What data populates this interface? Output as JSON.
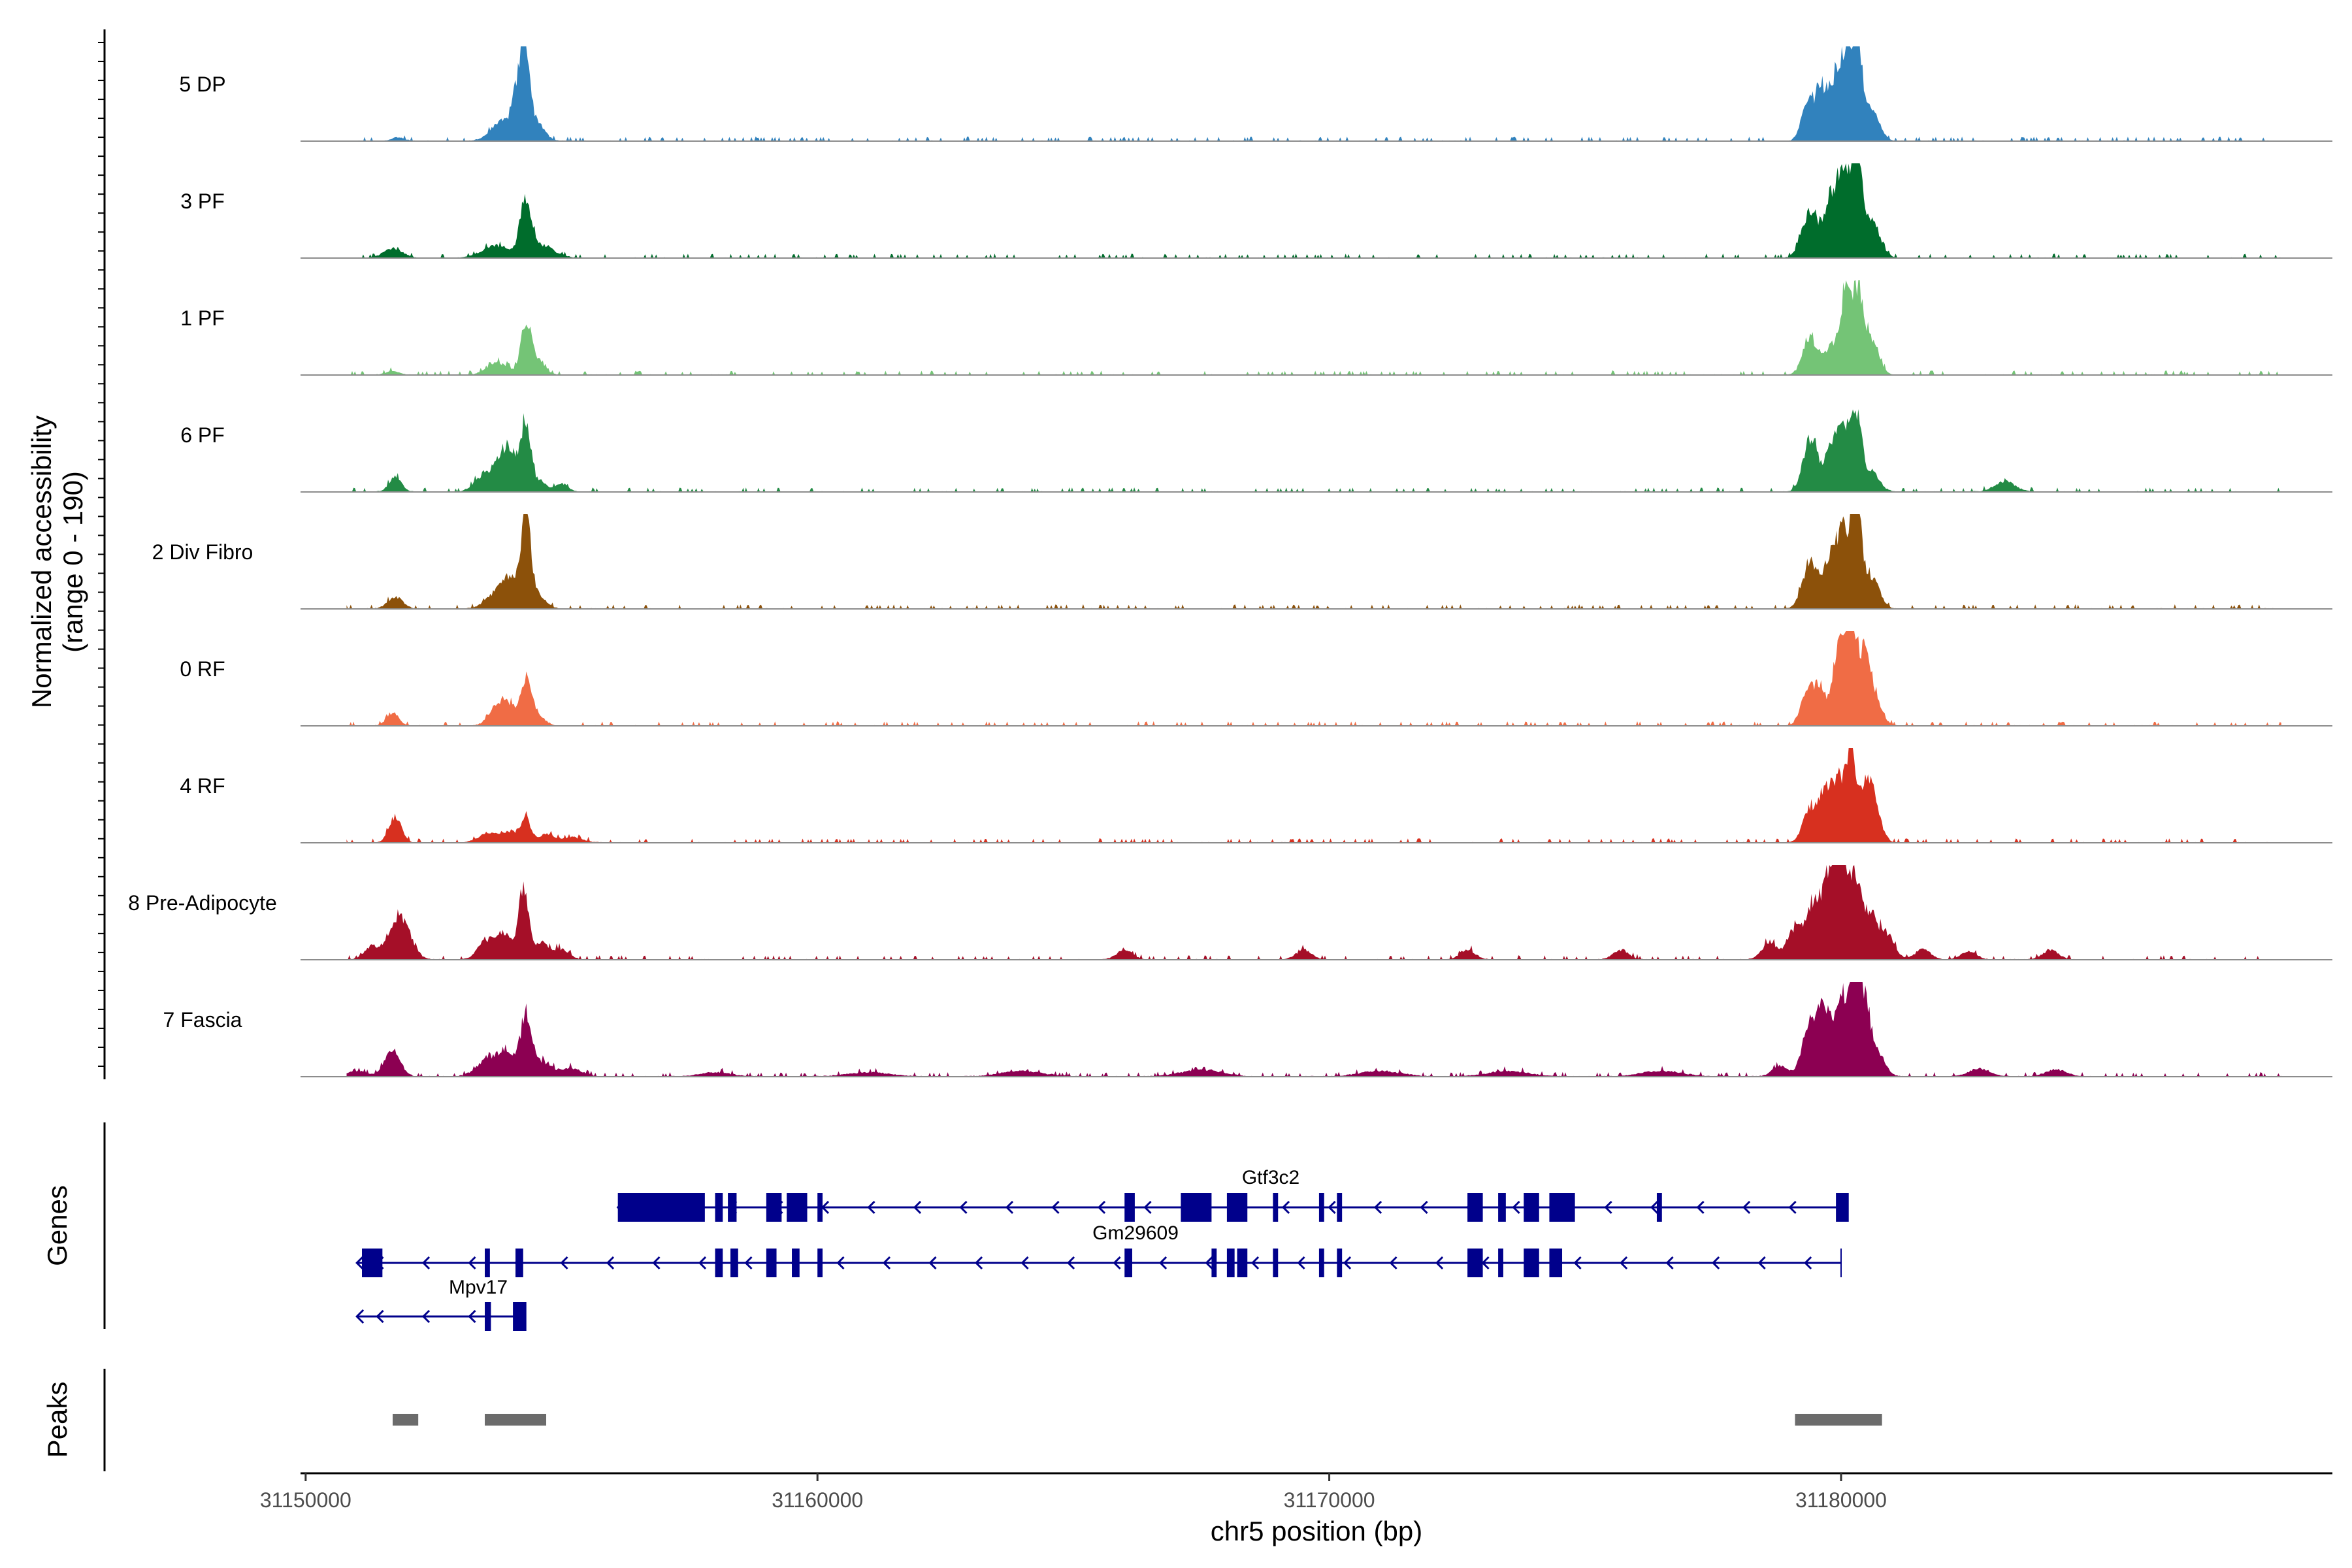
{
  "chart_data": {
    "type": "area",
    "ylabel": "Normalized accessibility",
    "ylabel_range": "(range 0 - 190)",
    "xlabel": "chr5 position (bp)",
    "xlim": [
      31149900,
      31189600
    ],
    "ylim": [
      0,
      190
    ],
    "x_ticks": [
      31150000,
      31160000,
      31170000,
      31180000
    ],
    "x_tick_labels": [
      "31150000",
      "31160000",
      "31170000",
      "31180000"
    ],
    "tracks": [
      {
        "name": "5 DP",
        "color": "#3182bd",
        "peaks": [
          [
            31151800,
            120,
            5
          ],
          [
            31153850,
            220,
            28
          ],
          [
            31154150,
            100,
            70
          ],
          [
            31154300,
            80,
            118
          ],
          [
            31154500,
            150,
            30
          ],
          [
            31179350,
            120,
            55
          ],
          [
            31179600,
            100,
            70
          ],
          [
            31179900,
            140,
            95
          ],
          [
            31180150,
            110,
            125
          ],
          [
            31180350,
            90,
            100
          ],
          [
            31180600,
            150,
            42
          ]
        ]
      },
      {
        "name": "3 PF",
        "color": "#006d2c",
        "peaks": [
          [
            31151700,
            180,
            14
          ],
          [
            31153700,
            250,
            18
          ],
          [
            31154300,
            110,
            82
          ],
          [
            31154600,
            250,
            18
          ],
          [
            31179400,
            160,
            70
          ],
          [
            31179800,
            120,
            90
          ],
          [
            31180050,
            110,
            120
          ],
          [
            31180300,
            100,
            150
          ],
          [
            31180600,
            160,
            55
          ]
        ]
      },
      {
        "name": "1 PF",
        "color": "#74c476",
        "peaks": [
          [
            31151700,
            120,
            6
          ],
          [
            31153750,
            200,
            18
          ],
          [
            31154300,
            100,
            68
          ],
          [
            31154500,
            150,
            22
          ],
          [
            31179400,
            140,
            55
          ],
          [
            31179800,
            120,
            40
          ],
          [
            31180100,
            110,
            130
          ],
          [
            31180350,
            100,
            110
          ],
          [
            31180600,
            140,
            50
          ]
        ]
      },
      {
        "name": "6 PF",
        "color": "#238b45",
        "peaks": [
          [
            31151750,
            120,
            22
          ],
          [
            31153400,
            150,
            18
          ],
          [
            31153750,
            150,
            42
          ],
          [
            31154000,
            120,
            55
          ],
          [
            31154300,
            100,
            100
          ],
          [
            31154600,
            120,
            15
          ],
          [
            31155000,
            120,
            12
          ],
          [
            31179400,
            140,
            80
          ],
          [
            31179800,
            120,
            60
          ],
          [
            31180050,
            110,
            95
          ],
          [
            31180300,
            100,
            110
          ],
          [
            31180600,
            150,
            30
          ],
          [
            31183200,
            200,
            15
          ]
        ]
      },
      {
        "name": "2 Div Fibro",
        "color": "#8c510a",
        "peaks": [
          [
            31151750,
            140,
            18
          ],
          [
            31153700,
            200,
            20
          ],
          [
            31154000,
            160,
            40
          ],
          [
            31154300,
            100,
            130
          ],
          [
            31154550,
            150,
            18
          ],
          [
            31179400,
            150,
            70
          ],
          [
            31179800,
            120,
            80
          ],
          [
            31180050,
            110,
            110
          ],
          [
            31180300,
            100,
            150
          ],
          [
            31180600,
            150,
            45
          ]
        ]
      },
      {
        "name": "0 RF",
        "color": "#f06c45",
        "peaks": [
          [
            31151700,
            120,
            18
          ],
          [
            31153750,
            160,
            30
          ],
          [
            31154000,
            150,
            22
          ],
          [
            31154300,
            100,
            60
          ],
          [
            31154500,
            150,
            18
          ],
          [
            31179350,
            130,
            55
          ],
          [
            31179600,
            100,
            50
          ],
          [
            31179950,
            120,
            110
          ],
          [
            31180200,
            100,
            155
          ],
          [
            31180450,
            110,
            95
          ],
          [
            31180650,
            140,
            40
          ]
        ]
      },
      {
        "name": "4 RF",
        "color": "#d7301f",
        "peaks": [
          [
            31151750,
            120,
            38
          ],
          [
            31153600,
            200,
            15
          ],
          [
            31154000,
            150,
            14
          ],
          [
            31154300,
            100,
            35
          ],
          [
            31154700,
            150,
            12
          ],
          [
            31155200,
            200,
            8
          ],
          [
            31179400,
            140,
            50
          ],
          [
            31179700,
            120,
            70
          ],
          [
            31179950,
            110,
            90
          ],
          [
            31180200,
            100,
            130
          ],
          [
            31180500,
            110,
            95
          ],
          [
            31180700,
            120,
            35
          ]
        ]
      },
      {
        "name": "8 Pre-Adipocyte",
        "color": "#a50f28",
        "peaks": [
          [
            31151300,
            150,
            20
          ],
          [
            31151750,
            150,
            55
          ],
          [
            31152000,
            150,
            30
          ],
          [
            31153500,
            150,
            25
          ],
          [
            31153850,
            150,
            40
          ],
          [
            31154250,
            100,
            100
          ],
          [
            31154600,
            150,
            25
          ],
          [
            31155000,
            150,
            15
          ],
          [
            31166000,
            150,
            14
          ],
          [
            31169500,
            150,
            14
          ],
          [
            31172700,
            150,
            14
          ],
          [
            31175700,
            150,
            14
          ],
          [
            31178600,
            150,
            25
          ],
          [
            31179100,
            150,
            45
          ],
          [
            31179500,
            150,
            90
          ],
          [
            31179800,
            120,
            110
          ],
          [
            31180000,
            110,
            145
          ],
          [
            31180250,
            110,
            115
          ],
          [
            31180550,
            150,
            70
          ],
          [
            31180900,
            150,
            35
          ],
          [
            31181600,
            150,
            15
          ],
          [
            31182500,
            150,
            12
          ],
          [
            31184100,
            150,
            14
          ]
        ]
      },
      {
        "name": "7 Fascia",
        "color": "#8c0052",
        "peaks": [
          [
            31151000,
            200,
            8
          ],
          [
            31151700,
            150,
            38
          ],
          [
            31153500,
            200,
            20
          ],
          [
            31153900,
            200,
            35
          ],
          [
            31154300,
            100,
            82
          ],
          [
            31154600,
            200,
            22
          ],
          [
            31155200,
            200,
            12
          ],
          [
            31158000,
            300,
            6
          ],
          [
            31161000,
            400,
            6
          ],
          [
            31164000,
            400,
            8
          ],
          [
            31167500,
            400,
            10
          ],
          [
            31171000,
            400,
            8
          ],
          [
            31173500,
            400,
            8
          ],
          [
            31176500,
            400,
            8
          ],
          [
            31178800,
            150,
            15
          ],
          [
            31179400,
            150,
            80
          ],
          [
            31179700,
            130,
            90
          ],
          [
            31180000,
            110,
            110
          ],
          [
            31180250,
            100,
            168
          ],
          [
            31180450,
            110,
            100
          ],
          [
            31180700,
            150,
            35
          ],
          [
            31182700,
            200,
            12
          ],
          [
            31184200,
            200,
            10
          ]
        ]
      }
    ],
    "genes_track_label": "Genes",
    "genes": [
      {
        "name": "Gtf3c2",
        "strand": "-",
        "start": 31156100,
        "end": 31180100,
        "exons": [
          [
            31156100,
            31157800
          ],
          [
            31158000,
            31158150
          ],
          [
            31158250,
            31158420
          ],
          [
            31159000,
            31159300
          ],
          [
            31159400,
            31159800
          ],
          [
            31160000,
            31160100
          ],
          [
            31166000,
            31166200
          ],
          [
            31167100,
            31167700
          ],
          [
            31168000,
            31168400
          ],
          [
            31168900,
            31169000
          ],
          [
            31169800,
            31169900
          ],
          [
            31170150,
            31170250
          ],
          [
            31172700,
            31173000
          ],
          [
            31173300,
            31173450
          ],
          [
            31173800,
            31174100
          ],
          [
            31174300,
            31174800
          ],
          [
            31176400,
            31176500
          ],
          [
            31179900,
            31180150
          ]
        ]
      },
      {
        "name": "Gm29609",
        "strand": "-",
        "start": 31151000,
        "end": 31180000,
        "exons": [
          [
            31151100,
            31151500
          ],
          [
            31153500,
            31153600
          ],
          [
            31154100,
            31154250
          ],
          [
            31158000,
            31158150
          ],
          [
            31158300,
            31158450
          ],
          [
            31159000,
            31159200
          ],
          [
            31159500,
            31159650
          ],
          [
            31160000,
            31160100
          ],
          [
            31166000,
            31166150
          ],
          [
            31167700,
            31167800
          ],
          [
            31168000,
            31168150
          ],
          [
            31168200,
            31168400
          ],
          [
            31168900,
            31169000
          ],
          [
            31169800,
            31169900
          ],
          [
            31170150,
            31170250
          ],
          [
            31172700,
            31173000
          ],
          [
            31173300,
            31173400
          ],
          [
            31173800,
            31174100
          ],
          [
            31174300,
            31174550
          ]
        ]
      },
      {
        "name": "Mpv17",
        "strand": "-",
        "start": 31151000,
        "end": 31154300,
        "exons": [
          [
            31153500,
            31153620
          ],
          [
            31154050,
            31154300
          ]
        ]
      }
    ],
    "peaks_track_label": "Peaks",
    "peak_regions": [
      [
        31151700,
        31152200
      ],
      [
        31153500,
        31154700
      ],
      [
        31179100,
        31180800
      ]
    ]
  }
}
